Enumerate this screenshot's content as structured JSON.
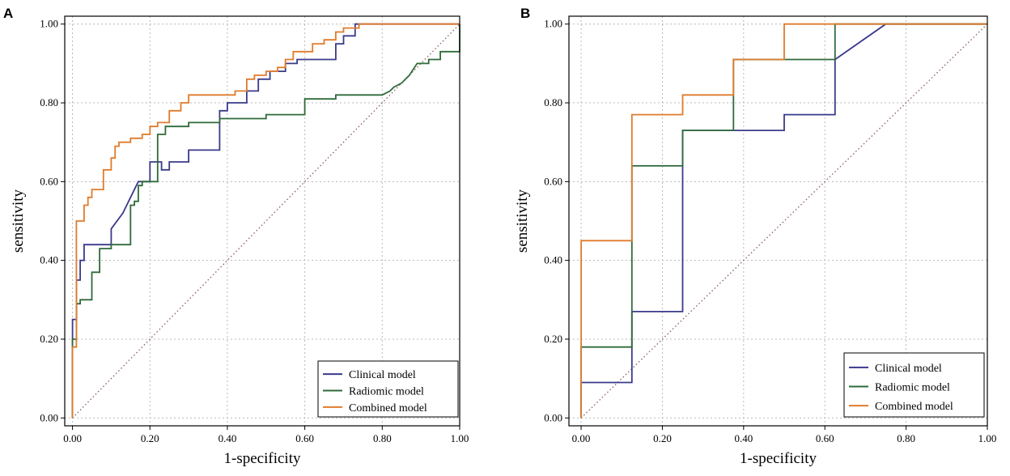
{
  "chart_data": [
    {
      "panel_label": "A",
      "type": "line",
      "title": "",
      "xlabel": "1-specificity",
      "ylabel": "sensitivity",
      "xlim": [
        -0.02,
        1.0
      ],
      "ylim": [
        -0.02,
        1.02
      ],
      "xticks": [
        "0.00",
        "0.20",
        "0.40",
        "0.60",
        "0.80",
        "1.00"
      ],
      "yticks": [
        "0.00",
        "0.20",
        "0.40",
        "0.60",
        "0.80",
        "1.00"
      ],
      "grid": true,
      "legend_position": "bottom-right",
      "reference_line": "diagonal-dotted",
      "series": [
        {
          "name": "Clinical model",
          "color": "#3a3a8c",
          "points": [
            [
              0,
              0
            ],
            [
              0,
              0.2
            ],
            [
              0,
              0.25
            ],
            [
              0.01,
              0.25
            ],
            [
              0.01,
              0.35
            ],
            [
              0.02,
              0.35
            ],
            [
              0.02,
              0.4
            ],
            [
              0.03,
              0.4
            ],
            [
              0.03,
              0.44
            ],
            [
              0.1,
              0.44
            ],
            [
              0.1,
              0.48
            ],
            [
              0.13,
              0.52
            ],
            [
              0.15,
              0.56
            ],
            [
              0.17,
              0.6
            ],
            [
              0.2,
              0.6
            ],
            [
              0.2,
              0.65
            ],
            [
              0.23,
              0.65
            ],
            [
              0.23,
              0.63
            ],
            [
              0.25,
              0.63
            ],
            [
              0.25,
              0.65
            ],
            [
              0.3,
              0.65
            ],
            [
              0.3,
              0.68
            ],
            [
              0.38,
              0.68
            ],
            [
              0.38,
              0.78
            ],
            [
              0.4,
              0.78
            ],
            [
              0.4,
              0.8
            ],
            [
              0.45,
              0.8
            ],
            [
              0.45,
              0.83
            ],
            [
              0.48,
              0.83
            ],
            [
              0.48,
              0.86
            ],
            [
              0.51,
              0.86
            ],
            [
              0.51,
              0.88
            ],
            [
              0.55,
              0.88
            ],
            [
              0.55,
              0.9
            ],
            [
              0.58,
              0.9
            ],
            [
              0.58,
              0.91
            ],
            [
              0.68,
              0.91
            ],
            [
              0.68,
              0.95
            ],
            [
              0.7,
              0.95
            ],
            [
              0.7,
              0.97
            ],
            [
              0.73,
              0.97
            ],
            [
              0.73,
              1.0
            ],
            [
              0.76,
              1.0
            ],
            [
              1.0,
              1.0
            ]
          ]
        },
        {
          "name": "Radiomic model",
          "color": "#2e6b3a",
          "points": [
            [
              0,
              0
            ],
            [
              0,
              0.2
            ],
            [
              0.01,
              0.2
            ],
            [
              0.01,
              0.29
            ],
            [
              0.02,
              0.29
            ],
            [
              0.02,
              0.3
            ],
            [
              0.05,
              0.3
            ],
            [
              0.05,
              0.37
            ],
            [
              0.07,
              0.37
            ],
            [
              0.07,
              0.43
            ],
            [
              0.1,
              0.43
            ],
            [
              0.1,
              0.44
            ],
            [
              0.15,
              0.44
            ],
            [
              0.15,
              0.54
            ],
            [
              0.16,
              0.54
            ],
            [
              0.16,
              0.55
            ],
            [
              0.17,
              0.55
            ],
            [
              0.17,
              0.59
            ],
            [
              0.18,
              0.59
            ],
            [
              0.18,
              0.6
            ],
            [
              0.22,
              0.6
            ],
            [
              0.22,
              0.72
            ],
            [
              0.24,
              0.72
            ],
            [
              0.24,
              0.74
            ],
            [
              0.3,
              0.74
            ],
            [
              0.3,
              0.75
            ],
            [
              0.38,
              0.75
            ],
            [
              0.38,
              0.76
            ],
            [
              0.5,
              0.76
            ],
            [
              0.5,
              0.77
            ],
            [
              0.6,
              0.77
            ],
            [
              0.6,
              0.81
            ],
            [
              0.68,
              0.81
            ],
            [
              0.68,
              0.82
            ],
            [
              0.8,
              0.82
            ],
            [
              0.82,
              0.83
            ],
            [
              0.83,
              0.84
            ],
            [
              0.85,
              0.85
            ],
            [
              0.86,
              0.86
            ],
            [
              0.87,
              0.87
            ],
            [
              0.89,
              0.9
            ],
            [
              0.92,
              0.9
            ],
            [
              0.92,
              0.91
            ],
            [
              0.95,
              0.91
            ],
            [
              0.95,
              0.93
            ],
            [
              1.0,
              0.93
            ],
            [
              1.0,
              1.0
            ]
          ]
        },
        {
          "name": "Combined model",
          "color": "#e07b2c",
          "points": [
            [
              0,
              0
            ],
            [
              0,
              0.18
            ],
            [
              0.01,
              0.18
            ],
            [
              0.01,
              0.45
            ],
            [
              0.01,
              0.5
            ],
            [
              0.03,
              0.5
            ],
            [
              0.03,
              0.54
            ],
            [
              0.04,
              0.54
            ],
            [
              0.04,
              0.56
            ],
            [
              0.05,
              0.56
            ],
            [
              0.05,
              0.58
            ],
            [
              0.08,
              0.58
            ],
            [
              0.08,
              0.63
            ],
            [
              0.1,
              0.63
            ],
            [
              0.1,
              0.66
            ],
            [
              0.11,
              0.66
            ],
            [
              0.11,
              0.69
            ],
            [
              0.12,
              0.69
            ],
            [
              0.12,
              0.7
            ],
            [
              0.15,
              0.7
            ],
            [
              0.15,
              0.71
            ],
            [
              0.17,
              0.71
            ],
            [
              0.18,
              0.71
            ],
            [
              0.18,
              0.72
            ],
            [
              0.2,
              0.72
            ],
            [
              0.2,
              0.74
            ],
            [
              0.22,
              0.74
            ],
            [
              0.22,
              0.75
            ],
            [
              0.25,
              0.75
            ],
            [
              0.25,
              0.78
            ],
            [
              0.28,
              0.78
            ],
            [
              0.28,
              0.8
            ],
            [
              0.3,
              0.8
            ],
            [
              0.3,
              0.82
            ],
            [
              0.42,
              0.82
            ],
            [
              0.42,
              0.83
            ],
            [
              0.45,
              0.83
            ],
            [
              0.45,
              0.86
            ],
            [
              0.47,
              0.86
            ],
            [
              0.47,
              0.87
            ],
            [
              0.5,
              0.87
            ],
            [
              0.5,
              0.88
            ],
            [
              0.53,
              0.88
            ],
            [
              0.53,
              0.89
            ],
            [
              0.55,
              0.89
            ],
            [
              0.55,
              0.91
            ],
            [
              0.57,
              0.91
            ],
            [
              0.57,
              0.93
            ],
            [
              0.62,
              0.93
            ],
            [
              0.62,
              0.95
            ],
            [
              0.65,
              0.95
            ],
            [
              0.65,
              0.96
            ],
            [
              0.68,
              0.96
            ],
            [
              0.68,
              0.98
            ],
            [
              0.7,
              0.98
            ],
            [
              0.7,
              0.99
            ],
            [
              0.74,
              0.99
            ],
            [
              0.74,
              1.0
            ],
            [
              1.0,
              1.0
            ]
          ]
        }
      ]
    },
    {
      "panel_label": "B",
      "type": "line",
      "title": "",
      "xlabel": "1-specificity",
      "ylabel": "sensitivity",
      "xlim": [
        -0.03,
        1.0
      ],
      "ylim": [
        -0.02,
        1.02
      ],
      "xticks": [
        "0.00",
        "0.20",
        "0.40",
        "0.60",
        "0.80",
        "1.00"
      ],
      "yticks": [
        "0.00",
        "0.20",
        "0.40",
        "0.60",
        "0.80",
        "1.00"
      ],
      "grid": true,
      "legend_position": "bottom-right",
      "reference_line": "diagonal-dotted",
      "series": [
        {
          "name": "Clinical model",
          "color": "#3a3a8c",
          "points": [
            [
              0,
              0
            ],
            [
              0,
              0.09
            ],
            [
              0.125,
              0.09
            ],
            [
              0.125,
              0.27
            ],
            [
              0.25,
              0.27
            ],
            [
              0.25,
              0.73
            ],
            [
              0.5,
              0.73
            ],
            [
              0.5,
              0.77
            ],
            [
              0.625,
              0.77
            ],
            [
              0.625,
              0.91
            ],
            [
              0.75,
              1.0
            ],
            [
              1.0,
              1.0
            ]
          ]
        },
        {
          "name": "Radiomic model",
          "color": "#2e6b3a",
          "points": [
            [
              0,
              0
            ],
            [
              0,
              0.18
            ],
            [
              0.125,
              0.18
            ],
            [
              0.125,
              0.64
            ],
            [
              0.25,
              0.64
            ],
            [
              0.25,
              0.73
            ],
            [
              0.375,
              0.73
            ],
            [
              0.375,
              0.91
            ],
            [
              0.625,
              0.91
            ],
            [
              0.625,
              1.0
            ],
            [
              1.0,
              1.0
            ]
          ]
        },
        {
          "name": "Combined model",
          "color": "#e07b2c",
          "points": [
            [
              0,
              0
            ],
            [
              0,
              0.45
            ],
            [
              0.125,
              0.45
            ],
            [
              0.125,
              0.77
            ],
            [
              0.25,
              0.77
            ],
            [
              0.25,
              0.82
            ],
            [
              0.375,
              0.82
            ],
            [
              0.375,
              0.91
            ],
            [
              0.5,
              0.91
            ],
            [
              0.5,
              1.0
            ],
            [
              1.0,
              1.0
            ]
          ]
        }
      ]
    }
  ]
}
